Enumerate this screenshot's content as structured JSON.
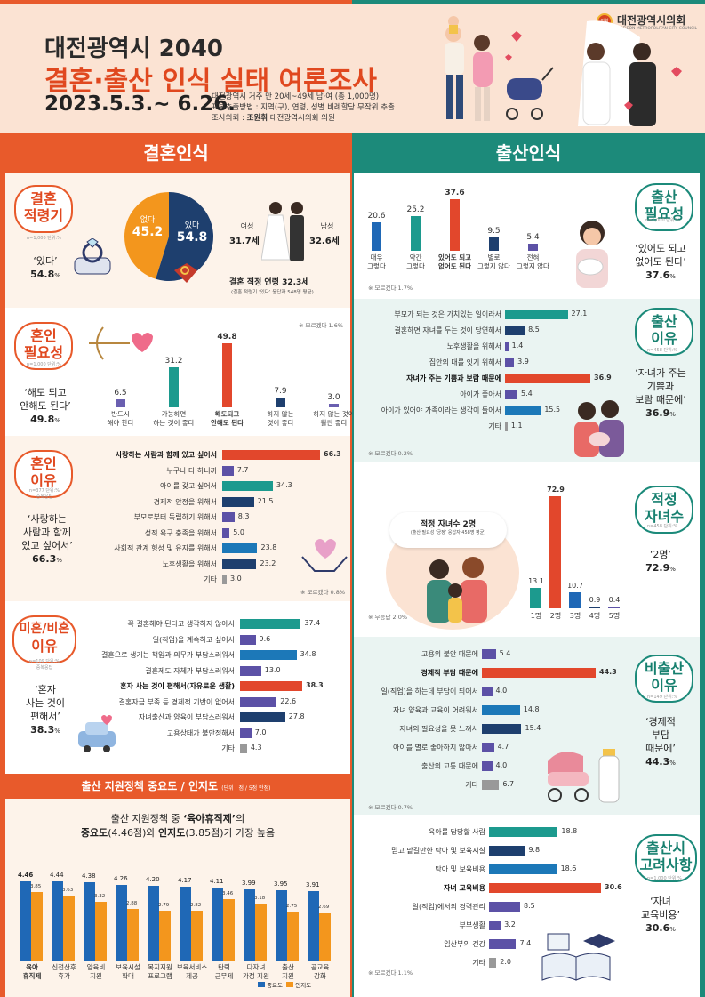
{
  "header": {
    "title_line1": "대전광역시 2040",
    "title_line2": "결혼·출산 인식 실태 여론조사",
    "period": "2023.5.3.~ 6.26.",
    "info1": "대전광역시 거주 만 20세~49세 남·여 (총 1,000명)",
    "info2": "표본추출방법 : 지역(구), 연령, 성별 비례할당 무작위 추출",
    "info3_prefix": "조사의뢰 : ",
    "info3_name": "조원휘",
    "info3_suffix": " 대전광역시의회 의원",
    "council_name": "대전광역시의회",
    "council_sub": "DAEJEON METROPOLITAN CITY COUNCIL",
    "seal_text": "의회"
  },
  "sections": {
    "marriage": "결혼인식",
    "birth": "출산인식"
  },
  "marriage_age": {
    "title_l1": "결혼",
    "title_l2": "적령기",
    "sub": "n=1,000 단위:%",
    "quote": "‘있다’",
    "quote_val": "54.8",
    "unit": "%",
    "pie_labels": [
      "없다",
      "있다"
    ],
    "pie_values": [
      "45.2",
      "54.8"
    ],
    "pie_fraction": 0.548,
    "female_label": "여성",
    "female_age": "31.7세",
    "male_label": "남성",
    "male_age": "32.6세",
    "note1": "결혼 적정 연령 32.3세",
    "note2": "(결혼 적령기 ‘있다’ 응답자 548명 평균)",
    "colors": {
      "yes": "#1e3f6e",
      "no": "#f3961d"
    }
  },
  "marriage_need": {
    "title_l1": "혼인",
    "title_l2": "필요성",
    "sub": "n=1,000 단위:%",
    "quote_l1": "‘해도 되고",
    "quote_l2": "안해도 된다’",
    "quote_val": "49.8",
    "unit": "%",
    "note": "※ 모르겠다 1.6%",
    "bars": [
      {
        "value": "6.5",
        "v": 6.5,
        "l1": "반드시",
        "l2": "해야 한다",
        "color": "#6a5fb0",
        "bold": false
      },
      {
        "value": "31.2",
        "v": 31.2,
        "l1": "가능하면",
        "l2": "하는 것이 좋다",
        "color": "#1c9a8e",
        "bold": false
      },
      {
        "value": "49.8",
        "v": 49.8,
        "l1": "해도되고",
        "l2": "안해도 된다",
        "color": "#e2472c",
        "bold": true
      },
      {
        "value": "7.9",
        "v": 7.9,
        "l1": "하지 않는",
        "l2": "것이 좋다",
        "color": "#1e3f6e",
        "bold": false
      },
      {
        "value": "3.0",
        "v": 3.0,
        "l1": "하지 않는 것이",
        "l2": "훨씬 좋다",
        "color": "#6a5fb0",
        "bold": false
      }
    ]
  },
  "marriage_reason": {
    "title_l1": "혼인",
    "title_l2": "이유",
    "sub1": "n=377 단위:%",
    "sub2": "중복응답",
    "quote_l1": "‘사랑하는",
    "quote_l2": "사람과 함께",
    "quote_l3": "있고 싶어서’",
    "quote_val": "66.3",
    "unit": "%",
    "note": "※ 모르겠다 0.8%",
    "rows": [
      {
        "label": "사랑하는 사람과 함께 있고 싶어서",
        "value": "66.3",
        "v": 66.3,
        "color": "#e2472c",
        "bold": true
      },
      {
        "label": "누구나 다 하니까",
        "value": "7.7",
        "v": 7.7,
        "color": "#5c51a6",
        "bold": false
      },
      {
        "label": "아이를 갖고 싶어서",
        "value": "34.3",
        "v": 34.3,
        "color": "#1c9a8e",
        "bold": false
      },
      {
        "label": "경제적 안정을 위해서",
        "value": "21.5",
        "v": 21.5,
        "color": "#1e3f6e",
        "bold": false
      },
      {
        "label": "부모로부터 독립하기 위해서",
        "value": "8.3",
        "v": 8.3,
        "color": "#5c51a6",
        "bold": false
      },
      {
        "label": "성적 욕구 충족을 위해서",
        "value": "5.0",
        "v": 5.0,
        "color": "#5c51a6",
        "bold": false
      },
      {
        "label": "사회적 관계 형성 및 유지를 위해서",
        "value": "23.8",
        "v": 23.8,
        "color": "#1c78b8",
        "bold": false
      },
      {
        "label": "노후생활을 위해서",
        "value": "23.2",
        "v": 23.2,
        "color": "#1e3f6e",
        "bold": false
      },
      {
        "label": "기타",
        "value": "3.0",
        "v": 3.0,
        "color": "#999999",
        "bold": false
      }
    ]
  },
  "nonmarriage_reason": {
    "title_l1": "미혼/비혼",
    "title_l2": "이유",
    "sub1": "n=109 단위:%",
    "sub2": "중복응답",
    "quote_l1": "‘혼자",
    "quote_l2": "사는 것이",
    "quote_l3": "편해서’",
    "quote_val": "38.3",
    "unit": "%",
    "rows": [
      {
        "label": "꼭 결혼해야 된다고 생각하지 않아서",
        "value": "37.4",
        "v": 37.4,
        "color": "#1c9a8e",
        "bold": false
      },
      {
        "label": "일(직업)을 계속하고 싶어서",
        "value": "9.6",
        "v": 9.6,
        "color": "#5c51a6",
        "bold": false
      },
      {
        "label": "결혼으로 생기는 책임과 의무가 부담스러워서",
        "value": "34.8",
        "v": 34.8,
        "color": "#1c78b8",
        "bold": false
      },
      {
        "label": "결혼제도 자체가 부담스러워서",
        "value": "13.0",
        "v": 13.0,
        "color": "#5c51a6",
        "bold": false
      },
      {
        "label": "혼자 사는 것이 편해서(자유로운 생활)",
        "value": "38.3",
        "v": 38.3,
        "color": "#e2472c",
        "bold": true
      },
      {
        "label": "결혼자금 부족 등 경제적 기반이 없어서",
        "value": "22.6",
        "v": 22.6,
        "color": "#5c51a6",
        "bold": false
      },
      {
        "label": "자녀출산과 양육이 부담스러워서",
        "value": "27.8",
        "v": 27.8,
        "color": "#1e3f6e",
        "bold": false
      },
      {
        "label": "고용상태가 불안정해서",
        "value": "7.0",
        "v": 7.0,
        "color": "#5c51a6",
        "bold": false
      },
      {
        "label": "기타",
        "value": "4.3",
        "v": 4.3,
        "color": "#999999",
        "bold": false
      }
    ]
  },
  "policy": {
    "header": "출산 지원정책 ",
    "header_bold": "중요도 / 인지도",
    "header_unit": "(단위 : 점 / 5점 만점)",
    "desc1_a": "출산 지원정책 중 ",
    "desc1_b": "‘육아휴직제’",
    "desc1_c": "의",
    "desc2_a": "중요도",
    "desc2_b": "(4.46점)와 ",
    "desc2_c": "인지도",
    "desc2_d": "(3.85점)가 가장 높음",
    "legend_importance": "중요도",
    "legend_awareness": "인지도",
    "colors": {
      "importance": "#1f68b6",
      "awareness": "#f3961d"
    },
    "items": [
      {
        "l1": "육아",
        "l2": "휴직제",
        "imp": "4.46",
        "aw": "3.85",
        "i": 4.46,
        "a": 3.85,
        "bold": true
      },
      {
        "l1": "신전산후",
        "l2": "휴가",
        "imp": "4.44",
        "aw": "3.63",
        "i": 4.44,
        "a": 3.63,
        "bold": false
      },
      {
        "l1": "양육비",
        "l2": "지원",
        "imp": "4.38",
        "aw": "3.32",
        "i": 4.38,
        "a": 3.32,
        "bold": false
      },
      {
        "l1": "보육시설",
        "l2": "확대",
        "imp": "4.26",
        "aw": "2.88",
        "i": 4.26,
        "a": 2.88,
        "bold": false
      },
      {
        "l1": "복지지원",
        "l2": "프로그램",
        "imp": "4.20",
        "aw": "2.79",
        "i": 4.2,
        "a": 2.79,
        "bold": false
      },
      {
        "l1": "보육서비스",
        "l2": "제공",
        "imp": "4.17",
        "aw": "2.82",
        "i": 4.17,
        "a": 2.82,
        "bold": false
      },
      {
        "l1": "탄력",
        "l2": "근무제",
        "imp": "4.11",
        "aw": "3.46",
        "i": 4.11,
        "a": 3.46,
        "bold": false
      },
      {
        "l1": "다자녀",
        "l2": "가정 지원",
        "imp": "3.99",
        "aw": "3.18",
        "i": 3.99,
        "a": 3.18,
        "bold": false
      },
      {
        "l1": "출산",
        "l2": "지원",
        "imp": "3.95",
        "aw": "2.75",
        "i": 3.95,
        "a": 2.75,
        "bold": false
      },
      {
        "l1": "공교육",
        "l2": "강화",
        "imp": "3.91",
        "aw": "2.69",
        "i": 3.91,
        "a": 2.69,
        "bold": false
      }
    ]
  },
  "birth_need": {
    "title_l1": "출산",
    "title_l2": "필요성",
    "sub": "n=1,000 단위:%",
    "quote_l1": "‘있어도 되고",
    "quote_l2": "없어도 된다’",
    "quote_val": "37.6",
    "unit": "%",
    "note": "※ 모르겠다 1.7%",
    "bars": [
      {
        "value": "20.6",
        "v": 20.6,
        "l1": "매우",
        "l2": "그렇다",
        "color": "#1f68b6",
        "bold": false
      },
      {
        "value": "25.2",
        "v": 25.2,
        "l1": "약간",
        "l2": "그렇다",
        "color": "#1c9a8e",
        "bold": false
      },
      {
        "value": "37.6",
        "v": 37.6,
        "l1": "있어도 되고",
        "l2": "없어도 된다",
        "color": "#e2472c",
        "bold": true
      },
      {
        "value": "9.5",
        "v": 9.5,
        "l1": "별로",
        "l2": "그렇지 않다",
        "color": "#1e3f6e",
        "bold": false
      },
      {
        "value": "5.4",
        "v": 5.4,
        "l1": "전혀",
        "l2": "그렇지 않다",
        "color": "#5c51a6",
        "bold": false
      }
    ]
  },
  "birth_reason": {
    "title_l1": "출산",
    "title_l2": "이유",
    "sub": "n=458 단위:%",
    "quote_l1": "‘자녀가 주는",
    "quote_l2": "기쁨과",
    "quote_l3": "보람 때문에’",
    "quote_val": "36.9",
    "unit": "%",
    "note": "※ 모르겠다 0.2%",
    "rows": [
      {
        "label": "부모가 되는 것은 가치있는 일이라서",
        "value": "27.1",
        "v": 27.1,
        "color": "#1c9a8e",
        "bold": false
      },
      {
        "label": "결혼하면 자녀를 두는 것이 당연해서",
        "value": "8.5",
        "v": 8.5,
        "color": "#1e3f6e",
        "bold": false
      },
      {
        "label": "노후생활을 위해서",
        "value": "1.4",
        "v": 1.4,
        "color": "#5c51a6",
        "bold": false
      },
      {
        "label": "집안의 대를 잇기 위해서",
        "value": "3.9",
        "v": 3.9,
        "color": "#5c51a6",
        "bold": false
      },
      {
        "label": "자녀가 주는 기쁨과 보람 때문에",
        "value": "36.9",
        "v": 36.9,
        "color": "#e2472c",
        "bold": true
      },
      {
        "label": "아이가 좋아서",
        "value": "5.4",
        "v": 5.4,
        "color": "#5c51a6",
        "bold": false
      },
      {
        "label": "아이가 있어야 가족이라는 생각이 들어서",
        "value": "15.5",
        "v": 15.5,
        "color": "#1c78b8",
        "bold": false
      },
      {
        "label": "기타",
        "value": "1.1",
        "v": 1.1,
        "color": "#999999",
        "bold": false
      }
    ]
  },
  "child_count": {
    "title_l1": "적정",
    "title_l2": "자녀수",
    "sub": "n=458 단위:%",
    "quote": "‘2명’",
    "quote_val": "72.9",
    "unit": "%",
    "bubble_l1": "적정 자녀수 2명",
    "bubble_l2": "(출산 필요성 ‘긍정’ 응답자 458명 평균)",
    "note": "※ 무응답 2.0%",
    "bars": [
      {
        "label": "1명",
        "value": "13.1",
        "v": 13.1,
        "color": "#1c9a8e"
      },
      {
        "label": "2명",
        "value": "72.9",
        "v": 72.9,
        "color": "#e2472c"
      },
      {
        "label": "3명",
        "value": "10.7",
        "v": 10.7,
        "color": "#1f68b6"
      },
      {
        "label": "4명",
        "value": "0.9",
        "v": 0.9,
        "color": "#1e3f6e"
      },
      {
        "label": "5명",
        "value": "0.4",
        "v": 0.4,
        "color": "#5c51a6"
      }
    ]
  },
  "nonbirth_reason": {
    "title_l1": "비출산",
    "title_l2": "이유",
    "sub": "n=149 단위:%",
    "quote_l1": "‘경제적",
    "quote_l2": "부담",
    "quote_l3": "때문에’",
    "quote_val": "44.3",
    "unit": "%",
    "note": "※ 모르겠다 0.7%",
    "rows": [
      {
        "label": "고용의 불안 때문에",
        "value": "5.4",
        "v": 5.4,
        "color": "#5c51a6",
        "bold": false
      },
      {
        "label": "경제적 부담 때문에",
        "value": "44.3",
        "v": 44.3,
        "color": "#e2472c",
        "bold": true
      },
      {
        "label": "일(직업)을 하는데 부담이 되어서",
        "value": "4.0",
        "v": 4.0,
        "color": "#5c51a6",
        "bold": false
      },
      {
        "label": "자녀 양육과 교육이 어려워서",
        "value": "14.8",
        "v": 14.8,
        "color": "#1c78b8",
        "bold": false
      },
      {
        "label": "자녀의 필요성을 못 느껴서",
        "value": "15.4",
        "v": 15.4,
        "color": "#1e3f6e",
        "bold": false
      },
      {
        "label": "아이를 별로 좋아하지 않아서",
        "value": "4.7",
        "v": 4.7,
        "color": "#5c51a6",
        "bold": false
      },
      {
        "label": "출산의 고통 때문에",
        "value": "4.0",
        "v": 4.0,
        "color": "#5c51a6",
        "bold": false
      },
      {
        "label": "기타",
        "value": "6.7",
        "v": 6.7,
        "color": "#999999",
        "bold": false
      }
    ]
  },
  "birth_consider": {
    "title_l1": "출산시",
    "title_l2": "고려사항",
    "sub": "n=1,000 단위:%",
    "quote_l1": "‘자녀",
    "quote_l2": "교육비용’",
    "quote_val": "30.6",
    "unit": "%",
    "note": "※ 모르겠다 1.1%",
    "rows": [
      {
        "label": "육아를 담당할 사람",
        "value": "18.8",
        "v": 18.8,
        "color": "#1c9a8e",
        "bold": false
      },
      {
        "label": "믿고 맡길만한 탁아 및 보육시설",
        "value": "9.8",
        "v": 9.8,
        "color": "#1e3f6e",
        "bold": false
      },
      {
        "label": "탁아 및 보육비용",
        "value": "18.6",
        "v": 18.6,
        "color": "#1c78b8",
        "bold": false
      },
      {
        "label": "자녀 교육비용",
        "value": "30.6",
        "v": 30.6,
        "color": "#e2472c",
        "bold": true
      },
      {
        "label": "일(직업)에서의 경력관리",
        "value": "8.5",
        "v": 8.5,
        "color": "#5c51a6",
        "bold": false
      },
      {
        "label": "부부생활",
        "value": "3.2",
        "v": 3.2,
        "color": "#5c51a6",
        "bold": false
      },
      {
        "label": "임산부의 건강",
        "value": "7.4",
        "v": 7.4,
        "color": "#5c51a6",
        "bold": false
      },
      {
        "label": "기타",
        "value": "2.0",
        "v": 2.0,
        "color": "#999999",
        "bold": false
      }
    ]
  }
}
